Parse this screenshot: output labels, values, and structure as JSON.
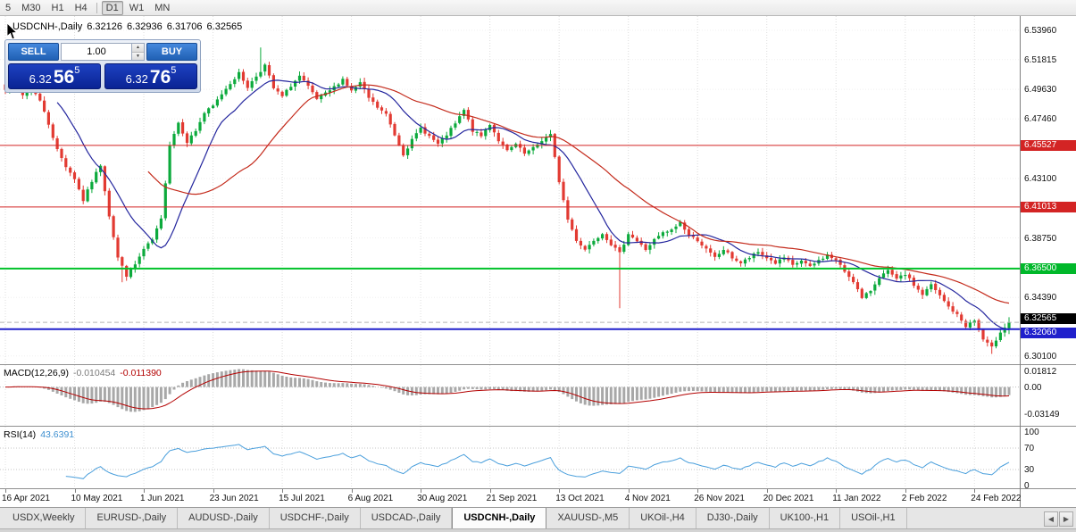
{
  "toolbar": {
    "periods": [
      {
        "label": "5",
        "active": false
      },
      {
        "label": "M30",
        "active": false
      },
      {
        "label": "H1",
        "active": false
      },
      {
        "label": "H4",
        "active": false
      },
      {
        "label": "D1",
        "active": true
      },
      {
        "label": "W1",
        "active": false
      },
      {
        "label": "MN",
        "active": false
      }
    ],
    "separator_after": 3
  },
  "chart_header": {
    "title": "USDCNH-,Daily",
    "open": "6.32126",
    "high": "6.32936",
    "low": "6.31706",
    "close": "6.32565"
  },
  "trade_panel": {
    "sell_label": "SELL",
    "buy_label": "BUY",
    "volume": "1.00",
    "bid": {
      "main": "6.32",
      "big": "56",
      "sup": "5"
    },
    "ask": {
      "main": "6.32",
      "big": "76",
      "sup": "5"
    }
  },
  "price_axis": {
    "labels": [
      {
        "value": 6.5396,
        "text": "6.53960"
      },
      {
        "value": 6.51815,
        "text": "6.51815"
      },
      {
        "value": 6.4963,
        "text": "6.49630"
      },
      {
        "value": 6.4746,
        "text": "6.47460"
      },
      {
        "value": 6.431,
        "text": "6.43100"
      },
      {
        "value": 6.3875,
        "text": "6.38750"
      },
      {
        "value": 6.3439,
        "text": "6.34390"
      },
      {
        "value": 6.301,
        "text": "6.30100"
      }
    ],
    "badges": [
      {
        "value": 6.45527,
        "text": "6.45527",
        "color": "#d32424",
        "dy": 0
      },
      {
        "value": 6.41013,
        "text": "6.41013",
        "color": "#d32424",
        "dy": 0
      },
      {
        "value": 6.365,
        "text": "6.36500",
        "color": "#00b82a",
        "dy": 0
      },
      {
        "value": 6.32565,
        "text": "6.32565",
        "color": "#000000",
        "dy": -4
      },
      {
        "value": 6.3206,
        "text": "6.32060",
        "color": "#2020cc",
        "dy": 4
      }
    ]
  },
  "levels": [
    {
      "price": 6.45527,
      "color": "#d32424",
      "width": 1,
      "style": "solid"
    },
    {
      "price": 6.41013,
      "color": "#d32424",
      "width": 1,
      "style": "solid"
    },
    {
      "price": 6.365,
      "color": "#00c22a",
      "width": 2,
      "style": "solid"
    },
    {
      "price": 6.3206,
      "color": "#2020cc",
      "width": 2,
      "style": "solid"
    },
    {
      "price": 6.32565,
      "color": "#b5b5b5",
      "width": 1,
      "style": "dashed"
    }
  ],
  "indicators": {
    "macd": {
      "name": "MACD(12,26,9)",
      "value_main": "-0.010454",
      "value_signal": "-0.011390",
      "axis": [
        {
          "value": 0.01812,
          "text": "0.01812"
        },
        {
          "value": 0,
          "text": "0.00"
        },
        {
          "value": -0.03149,
          "text": "-0.03149"
        }
      ],
      "ylim": [
        -0.043,
        0.0235
      ],
      "fast": 12,
      "slow": 26,
      "signal": 9,
      "histogram_color": "#a8a8a8",
      "signal_color": "#b30000"
    },
    "rsi": {
      "name": "RSI(14)",
      "value": "43.6391",
      "period": 14,
      "axis": [
        {
          "value": 100,
          "text": "100"
        },
        {
          "value": 70,
          "text": "70"
        },
        {
          "value": 30,
          "text": "30"
        },
        {
          "value": 0,
          "text": "0"
        }
      ],
      "levels": [
        70,
        30
      ],
      "ylim": [
        0,
        100
      ],
      "line_color": "#4a9fdc"
    }
  },
  "time_axis": {
    "labels": [
      "16 Apr 2021",
      "10 May 2021",
      "1 Jun 2021",
      "23 Jun 2021",
      "15 Jul 2021",
      "6 Aug 2021",
      "30 Aug 2021",
      "21 Sep 2021",
      "13 Oct 2021",
      "4 Nov 2021",
      "26 Nov 2021",
      "20 Dec 2021",
      "11 Jan 2022",
      "2 Feb 2022",
      "24 Feb 2022"
    ],
    "tick_indices": [
      0,
      16,
      32,
      48,
      64,
      80,
      96,
      112,
      128,
      144,
      160,
      176,
      192,
      208,
      224
    ]
  },
  "tabs": {
    "items": [
      "USDX,Weekly",
      "EURUSD-,Daily",
      "AUDUSD-,Daily",
      "USDCHF-,Daily",
      "USDCAD-,Daily",
      "USDCNH-,Daily",
      "XAUUSD-,M5",
      "UKOil-,H4",
      "DJ30-,Daily",
      "UK100-,H1",
      "USOil-,H1"
    ],
    "active_index": 5,
    "scroll_left": "◀",
    "scroll_right": "▶"
  },
  "chart_data": {
    "type": "candlestick",
    "symbol": "USDCNH-",
    "timeframe": "Daily",
    "ylim": [
      6.295,
      6.55
    ],
    "candle_count": 233,
    "up_color": "#0caa3c",
    "down_color": "#e23a32",
    "last_candle": {
      "open": 6.32126,
      "high": 6.32936,
      "low": 6.31706,
      "close": 6.32565
    },
    "close_anchors": [
      [
        0,
        6.497
      ],
      [
        2,
        6.503
      ],
      [
        4,
        6.492
      ],
      [
        6,
        6.499
      ],
      [
        8,
        6.488
      ],
      [
        10,
        6.471
      ],
      [
        12,
        6.452
      ],
      [
        14,
        6.44
      ],
      [
        16,
        6.431
      ],
      [
        18,
        6.415
      ],
      [
        20,
        6.429
      ],
      [
        22,
        6.441
      ],
      [
        24,
        6.404
      ],
      [
        26,
        6.373
      ],
      [
        28,
        6.36
      ],
      [
        30,
        6.368
      ],
      [
        32,
        6.379
      ],
      [
        34,
        6.386
      ],
      [
        36,
        6.401
      ],
      [
        38,
        6.456
      ],
      [
        40,
        6.472
      ],
      [
        42,
        6.458
      ],
      [
        44,
        6.466
      ],
      [
        46,
        6.479
      ],
      [
        48,
        6.484
      ],
      [
        50,
        6.493
      ],
      [
        52,
        6.501
      ],
      [
        54,
        6.508
      ],
      [
        56,
        6.498
      ],
      [
        58,
        6.506
      ],
      [
        60,
        6.514
      ],
      [
        62,
        6.497
      ],
      [
        64,
        6.491
      ],
      [
        66,
        6.499
      ],
      [
        68,
        6.506
      ],
      [
        70,
        6.498
      ],
      [
        72,
        6.489
      ],
      [
        74,
        6.493
      ],
      [
        76,
        6.498
      ],
      [
        78,
        6.504
      ],
      [
        80,
        6.495
      ],
      [
        82,
        6.501
      ],
      [
        84,
        6.49
      ],
      [
        86,
        6.483
      ],
      [
        88,
        6.478
      ],
      [
        90,
        6.463
      ],
      [
        92,
        6.449
      ],
      [
        94,
        6.459
      ],
      [
        96,
        6.468
      ],
      [
        98,
        6.462
      ],
      [
        100,
        6.456
      ],
      [
        102,
        6.463
      ],
      [
        104,
        6.471
      ],
      [
        106,
        6.481
      ],
      [
        108,
        6.466
      ],
      [
        110,
        6.462
      ],
      [
        112,
        6.471
      ],
      [
        114,
        6.459
      ],
      [
        116,
        6.451
      ],
      [
        118,
        6.456
      ],
      [
        120,
        6.449
      ],
      [
        122,
        6.453
      ],
      [
        124,
        6.459
      ],
      [
        126,
        6.463
      ],
      [
        128,
        6.429
      ],
      [
        130,
        6.401
      ],
      [
        132,
        6.386
      ],
      [
        134,
        6.379
      ],
      [
        136,
        6.386
      ],
      [
        138,
        6.391
      ],
      [
        140,
        6.383
      ],
      [
        142,
        6.376
      ],
      [
        144,
        6.391
      ],
      [
        146,
        6.385
      ],
      [
        148,
        6.379
      ],
      [
        150,
        6.386
      ],
      [
        152,
        6.391
      ],
      [
        154,
        6.393
      ],
      [
        156,
        6.399
      ],
      [
        158,
        6.389
      ],
      [
        160,
        6.386
      ],
      [
        162,
        6.379
      ],
      [
        164,
        6.373
      ],
      [
        166,
        6.379
      ],
      [
        168,
        6.373
      ],
      [
        170,
        6.369
      ],
      [
        172,
        6.373
      ],
      [
        174,
        6.377
      ],
      [
        176,
        6.373
      ],
      [
        178,
        6.369
      ],
      [
        180,
        6.373
      ],
      [
        182,
        6.367
      ],
      [
        184,
        6.371
      ],
      [
        186,
        6.366
      ],
      [
        188,
        6.371
      ],
      [
        190,
        6.375
      ],
      [
        192,
        6.371
      ],
      [
        194,
        6.363
      ],
      [
        196,
        6.356
      ],
      [
        198,
        6.343
      ],
      [
        200,
        6.349
      ],
      [
        202,
        6.359
      ],
      [
        204,
        6.363
      ],
      [
        206,
        6.357
      ],
      [
        208,
        6.361
      ],
      [
        210,
        6.353
      ],
      [
        212,
        6.346
      ],
      [
        214,
        6.353
      ],
      [
        216,
        6.345
      ],
      [
        218,
        6.337
      ],
      [
        220,
        6.331
      ],
      [
        222,
        6.323
      ],
      [
        224,
        6.327
      ],
      [
        226,
        6.313
      ],
      [
        228,
        6.307
      ],
      [
        230,
        6.319
      ],
      [
        232,
        6.3256
      ]
    ],
    "wick_overrides": [
      {
        "index": 27,
        "low": 6.355
      },
      {
        "index": 59,
        "high": 6.527
      },
      {
        "index": 142,
        "low": 6.336
      },
      {
        "index": 228,
        "low": 6.3025
      }
    ],
    "moving_averages": [
      {
        "period": 13,
        "color": "#24269e"
      },
      {
        "period": 34,
        "color": "#c42b1c"
      }
    ],
    "seed": 7
  }
}
